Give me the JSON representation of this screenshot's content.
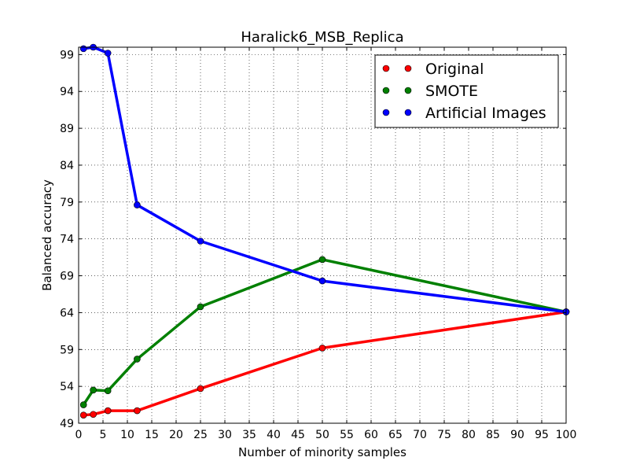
{
  "chart_data": {
    "type": "line",
    "title": "Haralick6_MSB_Replica",
    "xlabel": "Number of minority samples",
    "ylabel": "Balanced accuracy",
    "xlim": [
      0,
      100
    ],
    "ylim": [
      49,
      100
    ],
    "xticks": [
      0,
      5,
      10,
      15,
      20,
      25,
      30,
      35,
      40,
      45,
      50,
      55,
      60,
      65,
      70,
      75,
      80,
      85,
      90,
      95,
      100
    ],
    "yticks": [
      49,
      54,
      59,
      64,
      69,
      74,
      79,
      84,
      89,
      94,
      99
    ],
    "grid": true,
    "legend": "top-right",
    "series": [
      {
        "name": "Original",
        "color": "#ff0000",
        "x": [
          1,
          3,
          6,
          12,
          25,
          50,
          100
        ],
        "y": [
          50.1,
          50.2,
          50.7,
          50.7,
          53.7,
          59.2,
          64.1
        ]
      },
      {
        "name": "SMOTE",
        "color": "#008000",
        "x": [
          1,
          3,
          6,
          12,
          25,
          50,
          100
        ],
        "y": [
          51.5,
          53.5,
          53.4,
          57.7,
          64.8,
          71.2,
          64.1
        ]
      },
      {
        "name": "Artificial Images",
        "color": "#0000ff",
        "x": [
          1,
          3,
          6,
          12,
          25,
          50,
          100
        ],
        "y": [
          99.8,
          100.0,
          99.2,
          78.6,
          73.7,
          68.3,
          64.1
        ]
      }
    ]
  }
}
